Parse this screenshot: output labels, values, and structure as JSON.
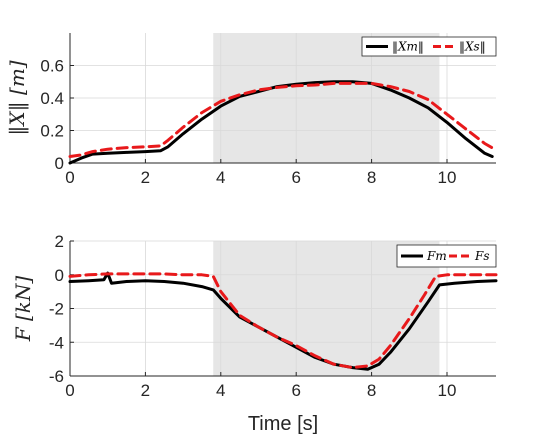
{
  "chart_data": [
    {
      "type": "line",
      "ylabel": "‖X‖ [m]",
      "xlim": [
        0,
        11.3
      ],
      "ylim": [
        0,
        0.8
      ],
      "xticks": [
        "0",
        "2",
        "4",
        "6",
        "8",
        "10"
      ],
      "yticks": [
        "0",
        "0.2",
        "0.4",
        "0.6"
      ],
      "shaded_region": [
        3.8,
        9.8
      ],
      "grid": true,
      "legend_position": "top-right",
      "series": [
        {
          "name": "‖Xm‖",
          "color": "#000000",
          "style": "solid",
          "x": [
            0,
            0.3,
            0.6,
            1.0,
            1.5,
            2.0,
            2.4,
            2.6,
            3.0,
            3.5,
            4.0,
            4.5,
            5.0,
            5.5,
            6.0,
            6.5,
            7.0,
            7.5,
            8.0,
            8.5,
            9.0,
            9.5,
            10.0,
            10.5,
            11.0,
            11.2
          ],
          "y": [
            0.0,
            0.03,
            0.055,
            0.06,
            0.065,
            0.07,
            0.075,
            0.1,
            0.18,
            0.27,
            0.35,
            0.41,
            0.44,
            0.47,
            0.485,
            0.495,
            0.5,
            0.5,
            0.49,
            0.45,
            0.4,
            0.34,
            0.25,
            0.15,
            0.06,
            0.04
          ]
        },
        {
          "name": "‖Xs‖",
          "color": "#e8191b",
          "style": "dashed",
          "x": [
            0,
            0.3,
            0.6,
            1.0,
            1.5,
            2.0,
            2.4,
            2.6,
            3.0,
            3.5,
            4.0,
            4.5,
            5.0,
            5.5,
            6.0,
            6.5,
            7.0,
            7.5,
            8.0,
            8.5,
            9.0,
            9.5,
            10.0,
            10.5,
            11.0,
            11.3
          ],
          "y": [
            0.04,
            0.05,
            0.07,
            0.085,
            0.095,
            0.1,
            0.105,
            0.14,
            0.22,
            0.31,
            0.38,
            0.42,
            0.45,
            0.465,
            0.475,
            0.48,
            0.49,
            0.49,
            0.49,
            0.47,
            0.44,
            0.39,
            0.3,
            0.21,
            0.12,
            0.08
          ]
        }
      ]
    },
    {
      "type": "line",
      "xlabel": "Time [s]",
      "ylabel": "F [kN]",
      "xlim": [
        0,
        11.3
      ],
      "ylim": [
        -6,
        2
      ],
      "xticks": [
        "0",
        "2",
        "4",
        "6",
        "8",
        "10"
      ],
      "yticks": [
        "-6",
        "-4",
        "-2",
        "0",
        "2"
      ],
      "shaded_region": [
        3.8,
        9.8
      ],
      "grid": true,
      "legend_position": "top-right",
      "series": [
        {
          "name": "Fm",
          "color": "#000000",
          "style": "solid",
          "x": [
            0,
            0.5,
            0.9,
            1.0,
            1.1,
            1.5,
            2.0,
            2.5,
            3.0,
            3.5,
            3.8,
            4.0,
            4.5,
            5.0,
            5.5,
            6.0,
            6.5,
            7.0,
            7.5,
            7.9,
            8.2,
            8.5,
            9.0,
            9.5,
            9.8,
            10.2,
            10.8,
            11.3
          ],
          "y": [
            -0.4,
            -0.35,
            -0.3,
            0.1,
            -0.5,
            -0.4,
            -0.35,
            -0.4,
            -0.5,
            -0.7,
            -0.9,
            -1.4,
            -2.5,
            -3.1,
            -3.7,
            -4.3,
            -4.9,
            -5.3,
            -5.5,
            -5.6,
            -5.3,
            -4.6,
            -3.2,
            -1.6,
            -0.6,
            -0.5,
            -0.4,
            -0.35
          ]
        },
        {
          "name": "Fs",
          "color": "#e8191b",
          "style": "dashed",
          "x": [
            0,
            0.5,
            1.0,
            1.5,
            2.0,
            2.5,
            3.0,
            3.5,
            3.8,
            4.0,
            4.5,
            5.0,
            5.5,
            6.0,
            6.5,
            7.0,
            7.5,
            7.9,
            8.2,
            8.5,
            9.0,
            9.4,
            9.7,
            10.0,
            10.5,
            11.0,
            11.3
          ],
          "y": [
            -0.1,
            0.0,
            0.05,
            0.05,
            0.05,
            0.05,
            0.0,
            0.0,
            -0.1,
            -1.0,
            -2.4,
            -3.1,
            -3.7,
            -4.2,
            -4.8,
            -5.3,
            -5.5,
            -5.4,
            -5.0,
            -4.2,
            -2.6,
            -1.2,
            -0.1,
            0.0,
            0.0,
            0.0,
            0.0
          ]
        }
      ]
    }
  ]
}
